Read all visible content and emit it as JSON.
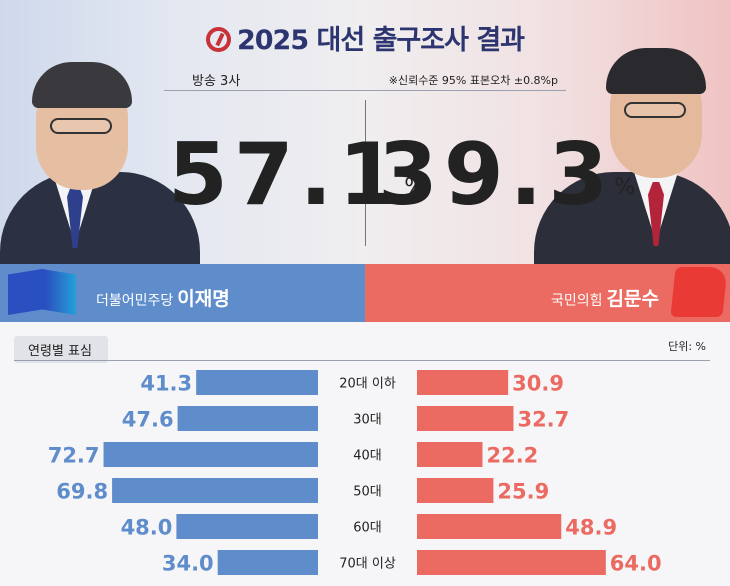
{
  "header": {
    "title": "2025 대선 출구조사 결과",
    "source": "방송 3사",
    "note": "※신뢰수준 95% 표본오차 ±0.8%p"
  },
  "candidates": [
    {
      "name": "이재명",
      "party": "더불어민주당",
      "percent": "57.1",
      "color": "#5f8dcc"
    },
    {
      "name": "김문수",
      "party": "국민의힘",
      "percent": "39.3",
      "color": "#eb6b63"
    }
  ],
  "percent_unit": "%",
  "chart_data": {
    "type": "bar",
    "title": "연령별 표심",
    "unit": "단위: %",
    "categories": [
      "20대 이하",
      "30대",
      "40대",
      "50대",
      "60대",
      "70대 이상"
    ],
    "series": [
      {
        "name": "이재명",
        "values": [
          41.3,
          47.6,
          72.7,
          69.8,
          48.0,
          34.0
        ],
        "color": "#5f8dcc"
      },
      {
        "name": "김문수",
        "values": [
          30.9,
          32.7,
          22.2,
          25.9,
          48.9,
          64.0
        ],
        "color": "#eb6b63"
      }
    ],
    "xlim": [
      0,
      80
    ]
  }
}
